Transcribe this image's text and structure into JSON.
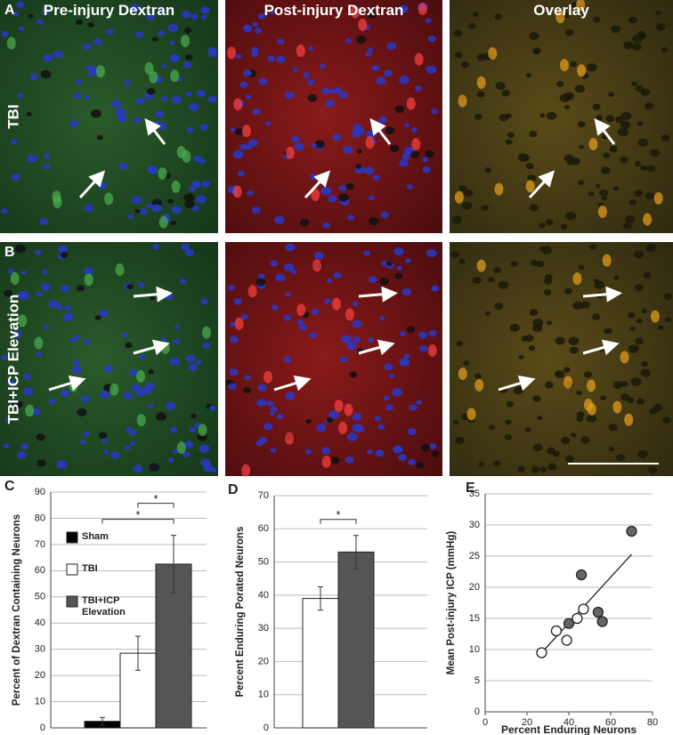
{
  "image_panels": {
    "letters": [
      "A",
      "B"
    ],
    "columns": [
      "Pre-injury Dextran",
      "Post-injury Dextran",
      "Overlay"
    ],
    "rows": [
      "TBI",
      "TBI+ICP Elevation"
    ]
  },
  "chart_data": [
    {
      "type": "bar",
      "panel": "C",
      "y_label": "Percent of Dextran Containing Neurons",
      "categories": [
        "Sham",
        "TBI",
        "TBI+ICP Elevation"
      ],
      "values": [
        2.5,
        28.5,
        62.5
      ],
      "errors": [
        1.5,
        6.5,
        11
      ],
      "colors": [
        "#000000",
        "#ffffff",
        "#555555"
      ],
      "ylim": [
        0,
        90
      ],
      "yticks": [
        0,
        10,
        20,
        30,
        40,
        50,
        60,
        70,
        80,
        90
      ],
      "grid": true,
      "significance": [
        {
          "pair": [
            0,
            2
          ],
          "label": "*"
        },
        {
          "pair": [
            1,
            2
          ],
          "label": "*"
        }
      ]
    },
    {
      "type": "bar",
      "panel": "D",
      "y_label": "Percent Enduring Porated Neurons",
      "values": [
        39,
        53
      ],
      "errors": [
        3.5,
        5
      ],
      "colors": [
        "#ffffff",
        "#555555"
      ],
      "ylim": [
        0,
        70
      ],
      "yticks": [
        0,
        10,
        20,
        30,
        40,
        50,
        60,
        70
      ],
      "grid": true,
      "significance": [
        {
          "pair": [
            0,
            1
          ],
          "label": "*"
        }
      ]
    },
    {
      "type": "scatter",
      "panel": "E",
      "x_label": "Percent Enduring Neurons",
      "y_label": "Mean Post-injury ICP (mmHg)",
      "series": [
        {
          "color": "#ffffff",
          "x": [
            27,
            34,
            39,
            44,
            47
          ],
          "values": [
            9.5,
            13,
            11.5,
            15,
            16.5
          ]
        },
        {
          "color": "#666666",
          "x": [
            40,
            46,
            54,
            56,
            70
          ],
          "values": [
            14.2,
            22,
            16,
            14.5,
            29
          ]
        }
      ],
      "trendline": {
        "x": [
          27,
          70
        ],
        "values": [
          9.5,
          25.3
        ]
      },
      "xlim": [
        0,
        80
      ],
      "xticks": [
        0,
        20,
        40,
        60,
        80
      ],
      "ylim": [
        0,
        35
      ],
      "yticks": [
        0,
        5,
        10,
        15,
        20,
        25,
        30,
        35
      ],
      "grid": true
    }
  ]
}
